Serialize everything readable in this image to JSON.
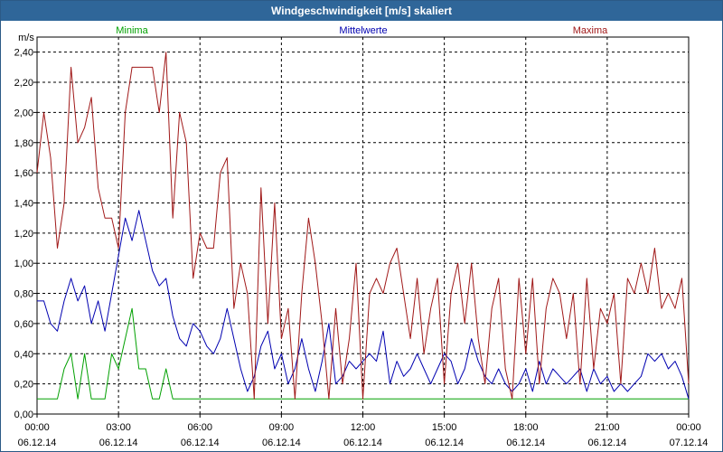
{
  "window": {
    "title": "Windgeschwindigkeit [m/s] skaliert"
  },
  "chart_data": {
    "type": "line",
    "title": "Windgeschwindigkeit [m/s] skaliert",
    "ylabel": "m/s",
    "xlabel": "",
    "ylim": [
      0,
      2.5
    ],
    "grid": true,
    "legend_position": "top",
    "y_ticks": [
      "0,00",
      "0,20",
      "0,40",
      "0,60",
      "0,80",
      "1,00",
      "1,20",
      "1,40",
      "1,60",
      "1,80",
      "2,00",
      "2,20",
      "2,40"
    ],
    "x_ticks": [
      {
        "time": "00:00",
        "date": "06.12.14"
      },
      {
        "time": "03:00",
        "date": "06.12.14"
      },
      {
        "time": "06:00",
        "date": "06.12.14"
      },
      {
        "time": "09:00",
        "date": "06.12.14"
      },
      {
        "time": "12:00",
        "date": "06.12.14"
      },
      {
        "time": "15:00",
        "date": "06.12.14"
      },
      {
        "time": "18:00",
        "date": "06.12.14"
      },
      {
        "time": "21:00",
        "date": "06.12.14"
      },
      {
        "time": "00:00",
        "date": "07.12.14"
      }
    ],
    "x": [
      0,
      0.25,
      0.5,
      0.75,
      1,
      1.25,
      1.5,
      1.75,
      2,
      2.25,
      2.5,
      2.75,
      3,
      3.25,
      3.5,
      3.75,
      4,
      4.25,
      4.5,
      4.75,
      5,
      5.25,
      5.5,
      5.75,
      6,
      6.25,
      6.5,
      6.75,
      7,
      7.25,
      7.5,
      7.75,
      8,
      8.25,
      8.5,
      8.75,
      9,
      9.25,
      9.5,
      9.75,
      10,
      10.25,
      10.5,
      10.75,
      11,
      11.25,
      11.5,
      11.75,
      12,
      12.25,
      12.5,
      12.75,
      13,
      13.25,
      13.5,
      13.75,
      14,
      14.25,
      14.5,
      14.75,
      15,
      15.25,
      15.5,
      15.75,
      16,
      16.25,
      16.5,
      16.75,
      17,
      17.25,
      17.5,
      17.75,
      18,
      18.25,
      18.5,
      18.75,
      19,
      19.25,
      19.5,
      19.75,
      20,
      20.25,
      20.5,
      20.75,
      21,
      21.25,
      21.5,
      21.75,
      22,
      22.25,
      22.5,
      22.75,
      23,
      23.25,
      23.5,
      23.75,
      24
    ],
    "series": [
      {
        "name": "Minima",
        "color": "#00a000",
        "values": [
          0.1,
          0.1,
          0.1,
          0.1,
          0.3,
          0.4,
          0.1,
          0.4,
          0.1,
          0.1,
          0.1,
          0.4,
          0.3,
          0.5,
          0.7,
          0.3,
          0.3,
          0.1,
          0.1,
          0.3,
          0.1,
          0.1,
          0.1,
          0.1,
          0.1,
          0.1,
          0.1,
          0.1,
          0.1,
          0.1,
          0.1,
          0.1,
          0.1,
          0.1,
          0.1,
          0.1,
          0.1,
          0.1,
          0.1,
          0.1,
          0.1,
          0.1,
          0.1,
          0.1,
          0.1,
          0.1,
          0.1,
          0.1,
          0.1,
          0.1,
          0.1,
          0.1,
          0.1,
          0.1,
          0.1,
          0.1,
          0.1,
          0.1,
          0.1,
          0.1,
          0.1,
          0.1,
          0.1,
          0.1,
          0.1,
          0.1,
          0.1,
          0.1,
          0.1,
          0.1,
          0.1,
          0.1,
          0.1,
          0.1,
          0.1,
          0.1,
          0.1,
          0.1,
          0.1,
          0.1,
          0.1,
          0.1,
          0.1,
          0.1,
          0.1,
          0.1,
          0.1,
          0.1,
          0.1,
          0.1,
          0.1,
          0.1,
          0.1,
          0.1,
          0.1,
          0.1,
          0.1
        ]
      },
      {
        "name": "Mittelwerte",
        "color": "#0000b0",
        "values": [
          0.75,
          0.75,
          0.6,
          0.55,
          0.75,
          0.9,
          0.75,
          0.85,
          0.6,
          0.75,
          0.55,
          0.8,
          1.05,
          1.3,
          1.15,
          1.35,
          1.15,
          0.95,
          0.85,
          0.9,
          0.65,
          0.5,
          0.45,
          0.6,
          0.55,
          0.45,
          0.4,
          0.5,
          0.7,
          0.5,
          0.3,
          0.15,
          0.25,
          0.45,
          0.55,
          0.3,
          0.4,
          0.2,
          0.3,
          0.5,
          0.3,
          0.15,
          0.35,
          0.6,
          0.2,
          0.25,
          0.35,
          0.3,
          0.35,
          0.4,
          0.35,
          0.55,
          0.2,
          0.35,
          0.25,
          0.3,
          0.4,
          0.3,
          0.2,
          0.3,
          0.4,
          0.35,
          0.2,
          0.3,
          0.5,
          0.35,
          0.25,
          0.2,
          0.3,
          0.2,
          0.15,
          0.2,
          0.3,
          0.15,
          0.35,
          0.2,
          0.3,
          0.25,
          0.2,
          0.25,
          0.3,
          0.15,
          0.3,
          0.2,
          0.25,
          0.15,
          0.2,
          0.15,
          0.2,
          0.25,
          0.4,
          0.35,
          0.4,
          0.3,
          0.35,
          0.25,
          0.1
        ]
      },
      {
        "name": "Maxima",
        "color": "#a01818",
        "values": [
          1.6,
          2.0,
          1.7,
          1.1,
          1.4,
          2.3,
          1.8,
          1.9,
          2.1,
          1.5,
          1.3,
          1.3,
          1.1,
          2.0,
          2.3,
          2.3,
          2.3,
          2.3,
          2.0,
          2.4,
          1.3,
          2.0,
          1.8,
          0.9,
          1.2,
          1.1,
          1.1,
          1.6,
          1.7,
          0.7,
          1.0,
          0.8,
          0.1,
          1.5,
          0.6,
          1.4,
          0.5,
          0.7,
          0.1,
          0.8,
          1.3,
          1.0,
          0.6,
          0.1,
          0.7,
          0.2,
          0.5,
          1.0,
          0.1,
          0.8,
          0.9,
          0.8,
          1.0,
          1.1,
          0.8,
          0.5,
          0.9,
          0.4,
          0.7,
          0.9,
          0.2,
          0.8,
          1.0,
          0.6,
          1.0,
          0.5,
          0.2,
          0.7,
          0.9,
          0.3,
          0.1,
          0.9,
          0.4,
          0.9,
          0.2,
          0.7,
          0.9,
          0.8,
          0.5,
          0.8,
          0.2,
          0.9,
          0.3,
          0.7,
          0.6,
          0.8,
          0.2,
          0.9,
          0.8,
          1.0,
          0.8,
          1.1,
          0.7,
          0.8,
          0.7,
          0.9,
          0.2
        ]
      }
    ]
  }
}
